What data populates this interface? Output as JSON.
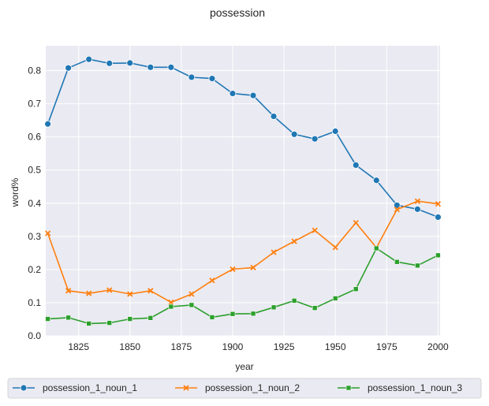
{
  "chart_data": {
    "type": "line",
    "title": "possession",
    "xlabel": "year",
    "ylabel": "word%",
    "xlim": [
      1809,
      2001
    ],
    "ylim": [
      0,
      0.875
    ],
    "xticks": [
      1825,
      1850,
      1875,
      1900,
      1925,
      1950,
      1975,
      2000
    ],
    "yticks": [
      0.0,
      0.1,
      0.2,
      0.3,
      0.4,
      0.5,
      0.6,
      0.7,
      0.8
    ],
    "grid": true,
    "legend_position": "bottom",
    "x": [
      1810,
      1820,
      1830,
      1840,
      1850,
      1860,
      1870,
      1880,
      1890,
      1900,
      1910,
      1920,
      1930,
      1940,
      1950,
      1960,
      1970,
      1980,
      1990,
      2000
    ],
    "series": [
      {
        "name": "possession_1_noun_1",
        "color": "#1f77b4",
        "marker": "circle",
        "values": [
          0.639,
          0.808,
          0.834,
          0.822,
          0.823,
          0.81,
          0.81,
          0.78,
          0.776,
          0.731,
          0.725,
          0.662,
          0.608,
          0.594,
          0.617,
          0.515,
          0.469,
          0.394,
          0.382,
          0.358
        ]
      },
      {
        "name": "possession_1_noun_2",
        "color": "#ff7f0e",
        "marker": "x",
        "values": [
          0.309,
          0.136,
          0.128,
          0.138,
          0.126,
          0.136,
          0.101,
          0.126,
          0.167,
          0.201,
          0.206,
          0.252,
          0.285,
          0.318,
          0.267,
          0.341,
          0.266,
          0.381,
          0.406,
          0.398
        ]
      },
      {
        "name": "possession_1_noun_3",
        "color": "#2ca02c",
        "marker": "square",
        "values": [
          0.051,
          0.055,
          0.037,
          0.039,
          0.051,
          0.054,
          0.088,
          0.093,
          0.056,
          0.066,
          0.067,
          0.086,
          0.106,
          0.084,
          0.113,
          0.141,
          0.264,
          0.223,
          0.212,
          0.243
        ]
      }
    ]
  }
}
